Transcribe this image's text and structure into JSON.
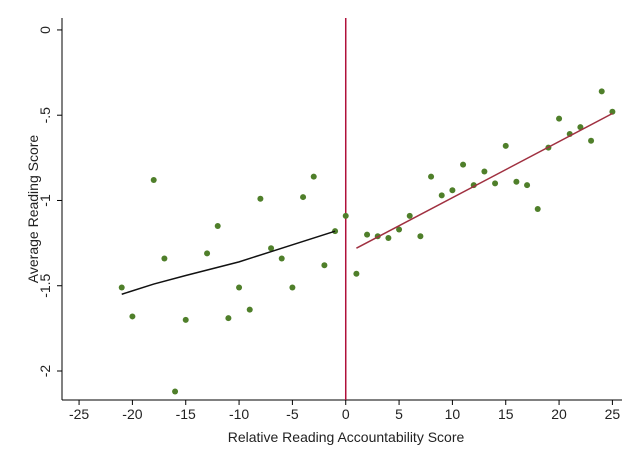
{
  "chart_data": {
    "type": "scatter",
    "xlabel": "Relative Reading Accountability Score",
    "ylabel": "Average Reading Score",
    "xlim": [
      -26.6,
      25.9
    ],
    "ylim": [
      -2.17,
      0.07
    ],
    "xticks": [
      -25,
      -20,
      -15,
      -10,
      -5,
      0,
      5,
      10,
      15,
      20,
      25
    ],
    "yticks": [
      0,
      {
        "value": -0.5,
        "label": "-.5"
      },
      -1,
      -1.5,
      -2
    ],
    "vline": 0,
    "vline_color": "#b0103a",
    "series": [
      {
        "type": "scatter",
        "color": "#4f7f2a",
        "x": [
          -21,
          -20,
          -18,
          -17,
          -16,
          -15,
          -13,
          -12,
          -11,
          -10,
          -9,
          -8,
          -7,
          -6,
          -5,
          -4,
          -3,
          -2,
          -1,
          0,
          1,
          2,
          3,
          4,
          5,
          6,
          7,
          8,
          9,
          10,
          11,
          12,
          13,
          14,
          15,
          16,
          17,
          18,
          19,
          20,
          21,
          22,
          23,
          24,
          25
        ],
        "values": [
          -1.51,
          -1.68,
          -0.88,
          -1.34,
          -2.12,
          -1.7,
          -1.31,
          -1.15,
          -1.69,
          -1.51,
          -1.64,
          -0.99,
          -1.28,
          -1.34,
          -1.51,
          -0.98,
          -0.86,
          -1.38,
          -1.18,
          -1.09,
          -1.43,
          -1.2,
          -1.21,
          -1.22,
          -1.17,
          -1.09,
          -1.21,
          -0.86,
          -0.97,
          -0.94,
          -0.79,
          -0.91,
          -0.83,
          -0.9,
          -0.68,
          -0.89,
          -0.91,
          -1.05,
          -0.69,
          -0.52,
          -0.61,
          -0.57,
          -0.65,
          -0.36,
          -0.48
        ]
      },
      {
        "type": "line",
        "color": "#111111",
        "x": [
          -21,
          -18,
          -15,
          -10,
          -5,
          -1
        ],
        "values": [
          -1.55,
          -1.49,
          -1.44,
          -1.36,
          -1.26,
          -1.18
        ]
      },
      {
        "type": "line",
        "color": "#a03040",
        "x": [
          1,
          25
        ],
        "values": [
          -1.28,
          -0.49
        ]
      }
    ]
  }
}
